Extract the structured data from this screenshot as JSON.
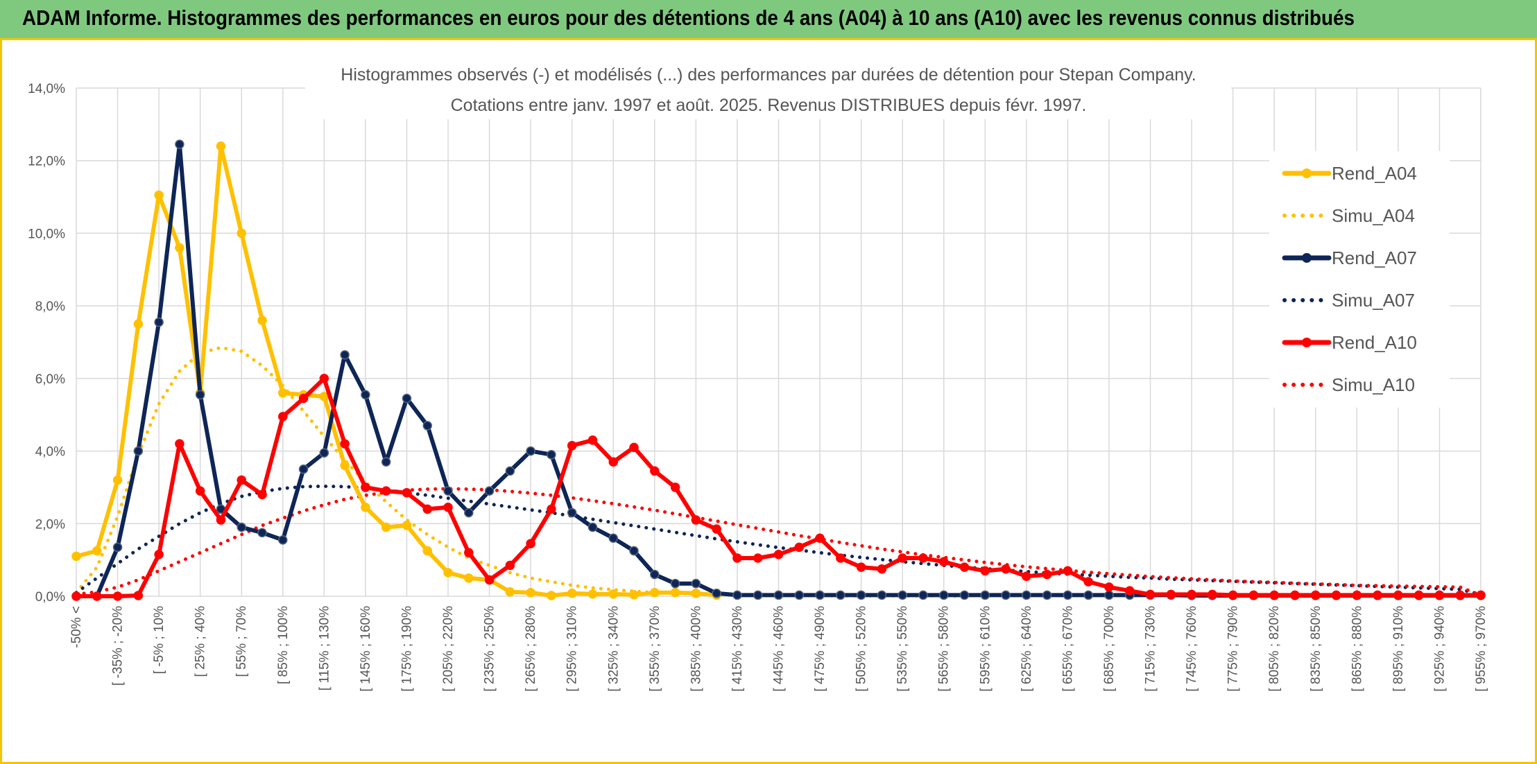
{
  "banner_title": "ADAM Informe. Histogrammes des performances en euros pour des détentions de 4 ans (A04) à 10 ans (A10) avec les revenus connus distribués",
  "chart_data": {
    "type": "line",
    "title": "Histogrammes observés (-) et modélisés (...) des performances par durées de détention pour Stepan Company.",
    "subtitle": "Cotations entre janv. 1997 et août. 2025. Revenus DISTRIBUES depuis févr. 1997.",
    "xlabel": "",
    "ylabel": "",
    "ylim": [
      0,
      14
    ],
    "yticks": [
      "0,0%",
      "2,0%",
      "4,0%",
      "6,0%",
      "8,0%",
      "10,0%",
      "12,0%",
      "14,0%"
    ],
    "grid": true,
    "legend_position": "right",
    "x_tick_labels": [
      "-50% <",
      "[ -35% ; -20%",
      "[ -5% ; 10%",
      "[ 25% ; 40%",
      "[ 55% ; 70%",
      "[ 85% ; 100%",
      "[ 115% ; 130%",
      "[ 145% ; 160%",
      "[ 175% ; 190%",
      "[ 205% ; 220%",
      "[ 235% ; 250%",
      "[ 265% ; 280%",
      "[ 295% ; 310%",
      "[ 325% ; 340%",
      "[ 355% ; 370%",
      "[ 385% ; 400%",
      "[ 415% ; 430%",
      "[ 445% ; 460%",
      "[ 475% ; 490%",
      "[ 505% ; 520%",
      "[ 535% ; 550%",
      "[ 565% ; 580%",
      "[ 595% ; 610%",
      "[ 625% ; 640%",
      "[ 655% ; 670%",
      "[ 685% ; 700%",
      "[ 715% ; 730%",
      "[ 745% ; 760%",
      "[ 775% ; 790%",
      "[ 805% ; 820%",
      "[ 835% ; 850%",
      "[ 865% ; 880%",
      "[ 895% ; 910%",
      "[ 925% ; 940%",
      "[ 955% ; 970%"
    ],
    "x_tick_every": 2,
    "n_bins": 69,
    "series": [
      {
        "name": "Rend_A04",
        "style": "solid",
        "color": "#ffc000",
        "markers": true,
        "values": [
          1.1,
          1.25,
          3.2,
          7.5,
          11.05,
          9.6,
          5.6,
          12.4,
          10.0,
          7.6,
          5.6,
          5.55,
          5.5,
          3.6,
          2.45,
          1.9,
          1.95,
          1.25,
          0.65,
          0.5,
          0.45,
          0.12,
          0.1,
          0.02,
          0.08,
          0.06,
          0.06,
          0.04,
          0.1,
          0.1,
          0.08,
          0.03
        ]
      },
      {
        "name": "Simu_A04",
        "style": "dotted",
        "color": "#ffc000",
        "markers": false,
        "values": [
          0.1,
          0.8,
          2.2,
          3.9,
          5.3,
          6.2,
          6.7,
          6.85,
          6.75,
          6.35,
          5.8,
          5.1,
          4.4,
          3.75,
          3.15,
          2.6,
          2.1,
          1.7,
          1.35,
          1.05,
          0.85,
          0.65,
          0.5,
          0.4,
          0.3,
          0.23,
          0.18,
          0.14,
          0.1,
          0.08,
          0.06,
          0.05,
          0.04,
          0.03,
          0.02,
          0.02,
          0.02,
          0.01,
          0.01,
          0.01,
          0.01,
          0.01,
          0.01,
          0.0
        ]
      },
      {
        "name": "Rend_A07",
        "style": "solid",
        "color": "#0e2557",
        "markers": true,
        "values": [
          0.0,
          0.0,
          1.35,
          4.0,
          7.55,
          12.45,
          5.55,
          2.4,
          1.9,
          1.75,
          1.55,
          3.5,
          3.95,
          6.65,
          5.55,
          3.7,
          5.45,
          4.7,
          2.9,
          2.3,
          2.9,
          3.45,
          4.0,
          3.9,
          2.3,
          1.9,
          1.6,
          1.25,
          0.6,
          0.35,
          0.35,
          0.08,
          0.03,
          0.03,
          0.03,
          0.03,
          0.03,
          0.03,
          0.03,
          0.03,
          0.03,
          0.03,
          0.03,
          0.03,
          0.03,
          0.03,
          0.03,
          0.03,
          0.03,
          0.03,
          0.03,
          0.03,
          0.03,
          0.03,
          0.02,
          0.02,
          0.02,
          0.02,
          0.02,
          0.02,
          0.02,
          0.02,
          0.02,
          0.02,
          0.02,
          0.02,
          0.02,
          0.02,
          0.02
        ]
      },
      {
        "name": "Simu_A07",
        "style": "dotted",
        "color": "#0e2557",
        "markers": false,
        "values": [
          0.1,
          0.5,
          0.9,
          1.3,
          1.65,
          2.0,
          2.3,
          2.55,
          2.75,
          2.88,
          2.97,
          3.02,
          3.03,
          3.02,
          2.98,
          2.92,
          2.85,
          2.78,
          2.7,
          2.62,
          2.54,
          2.46,
          2.38,
          2.3,
          2.21,
          2.12,
          2.03,
          1.94,
          1.85,
          1.76,
          1.67,
          1.58,
          1.5,
          1.42,
          1.34,
          1.27,
          1.2,
          1.13,
          1.07,
          1.01,
          0.95,
          0.9,
          0.85,
          0.8,
          0.76,
          0.72,
          0.68,
          0.64,
          0.61,
          0.58,
          0.55,
          0.52,
          0.5,
          0.47,
          0.45,
          0.43,
          0.41,
          0.39,
          0.37,
          0.35,
          0.33,
          0.31,
          0.29,
          0.27,
          0.25,
          0.23,
          0.21,
          0.19,
          0.05
        ]
      },
      {
        "name": "Rend_A10",
        "style": "solid",
        "color": "#ff0000",
        "markers": true,
        "values": [
          0.0,
          0.0,
          0.0,
          0.02,
          1.15,
          4.2,
          2.9,
          2.1,
          3.2,
          2.8,
          4.95,
          5.45,
          6.0,
          4.2,
          3.0,
          2.9,
          2.85,
          2.4,
          2.45,
          1.2,
          0.45,
          0.85,
          1.45,
          2.4,
          4.15,
          4.3,
          3.7,
          4.1,
          3.45,
          3.0,
          2.1,
          1.85,
          1.05,
          1.05,
          1.15,
          1.35,
          1.6,
          1.05,
          0.8,
          0.75,
          1.05,
          1.05,
          0.95,
          0.8,
          0.7,
          0.75,
          0.55,
          0.6,
          0.7,
          0.4,
          0.25,
          0.15,
          0.05,
          0.05,
          0.05,
          0.05,
          0.03,
          0.03,
          0.03,
          0.03,
          0.03,
          0.03,
          0.03,
          0.03,
          0.03,
          0.03,
          0.03,
          0.03,
          0.03
        ]
      },
      {
        "name": "Simu_A10",
        "style": "dotted",
        "color": "#ff0000",
        "markers": false,
        "values": [
          0.05,
          0.12,
          0.25,
          0.45,
          0.7,
          0.95,
          1.2,
          1.45,
          1.7,
          1.95,
          2.15,
          2.35,
          2.52,
          2.67,
          2.78,
          2.86,
          2.92,
          2.95,
          2.96,
          2.95,
          2.93,
          2.89,
          2.84,
          2.78,
          2.71,
          2.63,
          2.55,
          2.46,
          2.37,
          2.27,
          2.17,
          2.07,
          1.97,
          1.87,
          1.77,
          1.67,
          1.58,
          1.48,
          1.39,
          1.3,
          1.22,
          1.14,
          1.07,
          1.0,
          0.93,
          0.87,
          0.81,
          0.76,
          0.71,
          0.66,
          0.62,
          0.58,
          0.54,
          0.51,
          0.48,
          0.45,
          0.42,
          0.4,
          0.38,
          0.36,
          0.34,
          0.32,
          0.3,
          0.29,
          0.28,
          0.27,
          0.26,
          0.25,
          0.03
        ]
      }
    ]
  }
}
